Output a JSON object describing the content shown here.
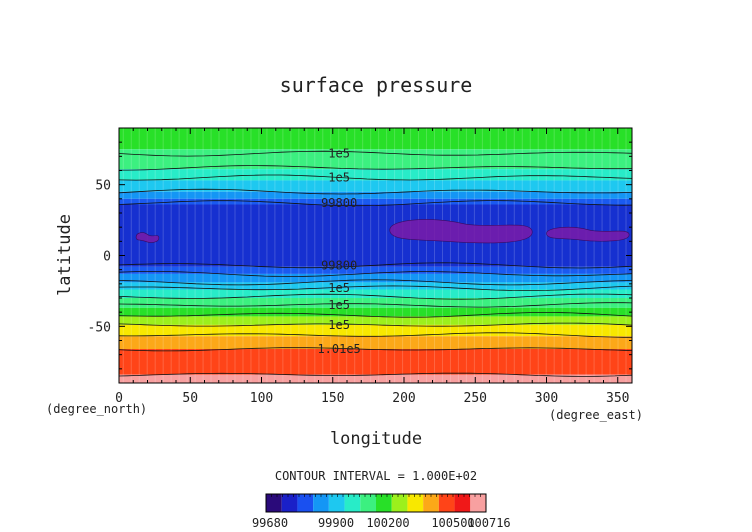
{
  "chart_data": {
    "type": "contour",
    "title": "surface pressure",
    "xlabel": "longitude",
    "ylabel": "latitude",
    "x_unit": "(degree_east)",
    "y_unit": "(degree_north)",
    "xlim": [
      0,
      360
    ],
    "ylim": [
      -90,
      90
    ],
    "x_ticks": [
      0,
      50,
      100,
      150,
      200,
      250,
      300,
      350
    ],
    "y_ticks": [
      -50,
      0,
      50
    ],
    "contour_interval_text": "CONTOUR INTERVAL = 1.000E+02",
    "colorbar_min": 99680,
    "colorbar_max": 100716,
    "colorbar_labels": [
      "99680",
      "99900",
      "100200",
      "100500",
      "100716"
    ],
    "bands": [
      {
        "lat_top": 90,
        "lat_bottom": 75,
        "color": "#28e028"
      },
      {
        "lat_top": 75,
        "lat_bottom": 61,
        "color": "#3cf080"
      },
      {
        "lat_top": 61,
        "lat_bottom": 53,
        "color": "#28ecc8"
      },
      {
        "lat_top": 53,
        "lat_bottom": 45,
        "color": "#1ec8f0"
      },
      {
        "lat_top": 45,
        "lat_bottom": 40,
        "color": "#1496f5"
      },
      {
        "lat_top": 40,
        "lat_bottom": 36,
        "color": "#1a5af0"
      },
      {
        "lat_top": 36,
        "lat_bottom": -8,
        "color": "#1630d0"
      },
      {
        "lat_top": -8,
        "lat_bottom": -13,
        "color": "#1a5af0"
      },
      {
        "lat_top": -13,
        "lat_bottom": -19,
        "color": "#1496f5"
      },
      {
        "lat_top": -19,
        "lat_bottom": -24,
        "color": "#1ec8f0"
      },
      {
        "lat_top": -24,
        "lat_bottom": -30,
        "color": "#28ecc8"
      },
      {
        "lat_top": -30,
        "lat_bottom": -37,
        "color": "#3cf080"
      },
      {
        "lat_top": -37,
        "lat_bottom": -43,
        "color": "#28e028"
      },
      {
        "lat_top": -43,
        "lat_bottom": -49,
        "color": "#9cf01c"
      },
      {
        "lat_top": -49,
        "lat_bottom": -57,
        "color": "#f8e800"
      },
      {
        "lat_top": -57,
        "lat_bottom": -66,
        "color": "#fca818"
      },
      {
        "lat_top": -66,
        "lat_bottom": -84,
        "color": "#ff4418"
      },
      {
        "lat_top": -84,
        "lat_bottom": -90,
        "color": "#f8a0a0"
      }
    ],
    "contour_lines": [
      {
        "lat": 72,
        "label": "1e5",
        "label_lon": 125
      },
      {
        "lat": 55,
        "label": "1e5",
        "label_lon": 125
      },
      {
        "lat": 37,
        "label": "99800",
        "label_lon": 125
      },
      {
        "lat": -7,
        "label": "99800",
        "label_lon": 125
      },
      {
        "lat": -23,
        "label": "1e5",
        "label_lon": 125
      },
      {
        "lat": -35,
        "label": "1e5",
        "label_lon": 125
      },
      {
        "lat": -49,
        "label": "1e5",
        "label_lon": 125
      },
      {
        "lat": -66,
        "label": "1.01e5",
        "label_lon": 125
      },
      {
        "lat": 62,
        "label": "",
        "label_lon": 0
      },
      {
        "lat": 45,
        "label": "",
        "label_lon": 0
      },
      {
        "lat": -13,
        "label": "",
        "label_lon": 0
      },
      {
        "lat": -19,
        "label": "",
        "label_lon": 0
      },
      {
        "lat": -29,
        "label": "",
        "label_lon": 0
      },
      {
        "lat": -42,
        "label": "",
        "label_lon": 0
      },
      {
        "lat": -56,
        "label": "",
        "label_lon": 0
      },
      {
        "lat": -84,
        "label": "",
        "label_lon": 0
      }
    ],
    "low_pressure_patches": [
      {
        "lon_min": 12,
        "lon_max": 28,
        "lat_min": 10,
        "lat_max": 16
      },
      {
        "lon_min": 190,
        "lon_max": 290,
        "lat_min": 10,
        "lat_max": 26
      },
      {
        "lon_min": 300,
        "lon_max": 358,
        "lat_min": 11,
        "lat_max": 20
      }
    ],
    "low_pressure_color": "#7a1aa8"
  }
}
